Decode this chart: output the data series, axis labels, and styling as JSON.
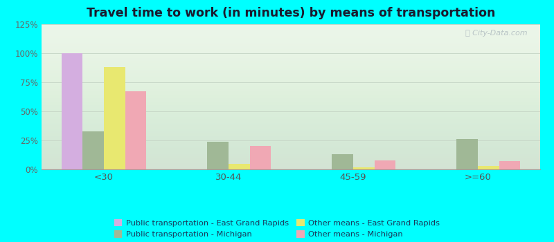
{
  "title": "Travel time to work (in minutes) by means of transportation",
  "categories": [
    "<30",
    "30-44",
    "45-59",
    ">=60"
  ],
  "series_order": [
    "Public transportation - East Grand Rapids",
    "Public transportation - Michigan",
    "Other means - East Grand Rapids",
    "Other means - Michigan"
  ],
  "series": {
    "Public transportation - East Grand Rapids": {
      "values": [
        100,
        0,
        0,
        0
      ],
      "color": "#d4aee0"
    },
    "Public transportation - Michigan": {
      "values": [
        33,
        24,
        13,
        26
      ],
      "color": "#a0b896"
    },
    "Other means - East Grand Rapids": {
      "values": [
        88,
        5,
        2,
        3
      ],
      "color": "#e8e870"
    },
    "Other means - Michigan": {
      "values": [
        67,
        20,
        8,
        7
      ],
      "color": "#f0a8b4"
    }
  },
  "ylim": [
    0,
    125
  ],
  "yticks": [
    0,
    25,
    50,
    75,
    100,
    125
  ],
  "ytick_labels": [
    "0%",
    "25%",
    "50%",
    "75%",
    "100%",
    "125%"
  ],
  "outer_background": "#00ffff",
  "plot_bg_color": "#eaf5e8",
  "grid_color": "#c8d8c8",
  "title_color": "#1a1a2e",
  "legend_text_color": "#1a3a5c",
  "bar_width": 0.17,
  "legend_order": [
    "Public transportation - East Grand Rapids",
    "Public transportation - Michigan",
    "Other means - East Grand Rapids",
    "Other means - Michigan"
  ],
  "legend_ncol": 2
}
